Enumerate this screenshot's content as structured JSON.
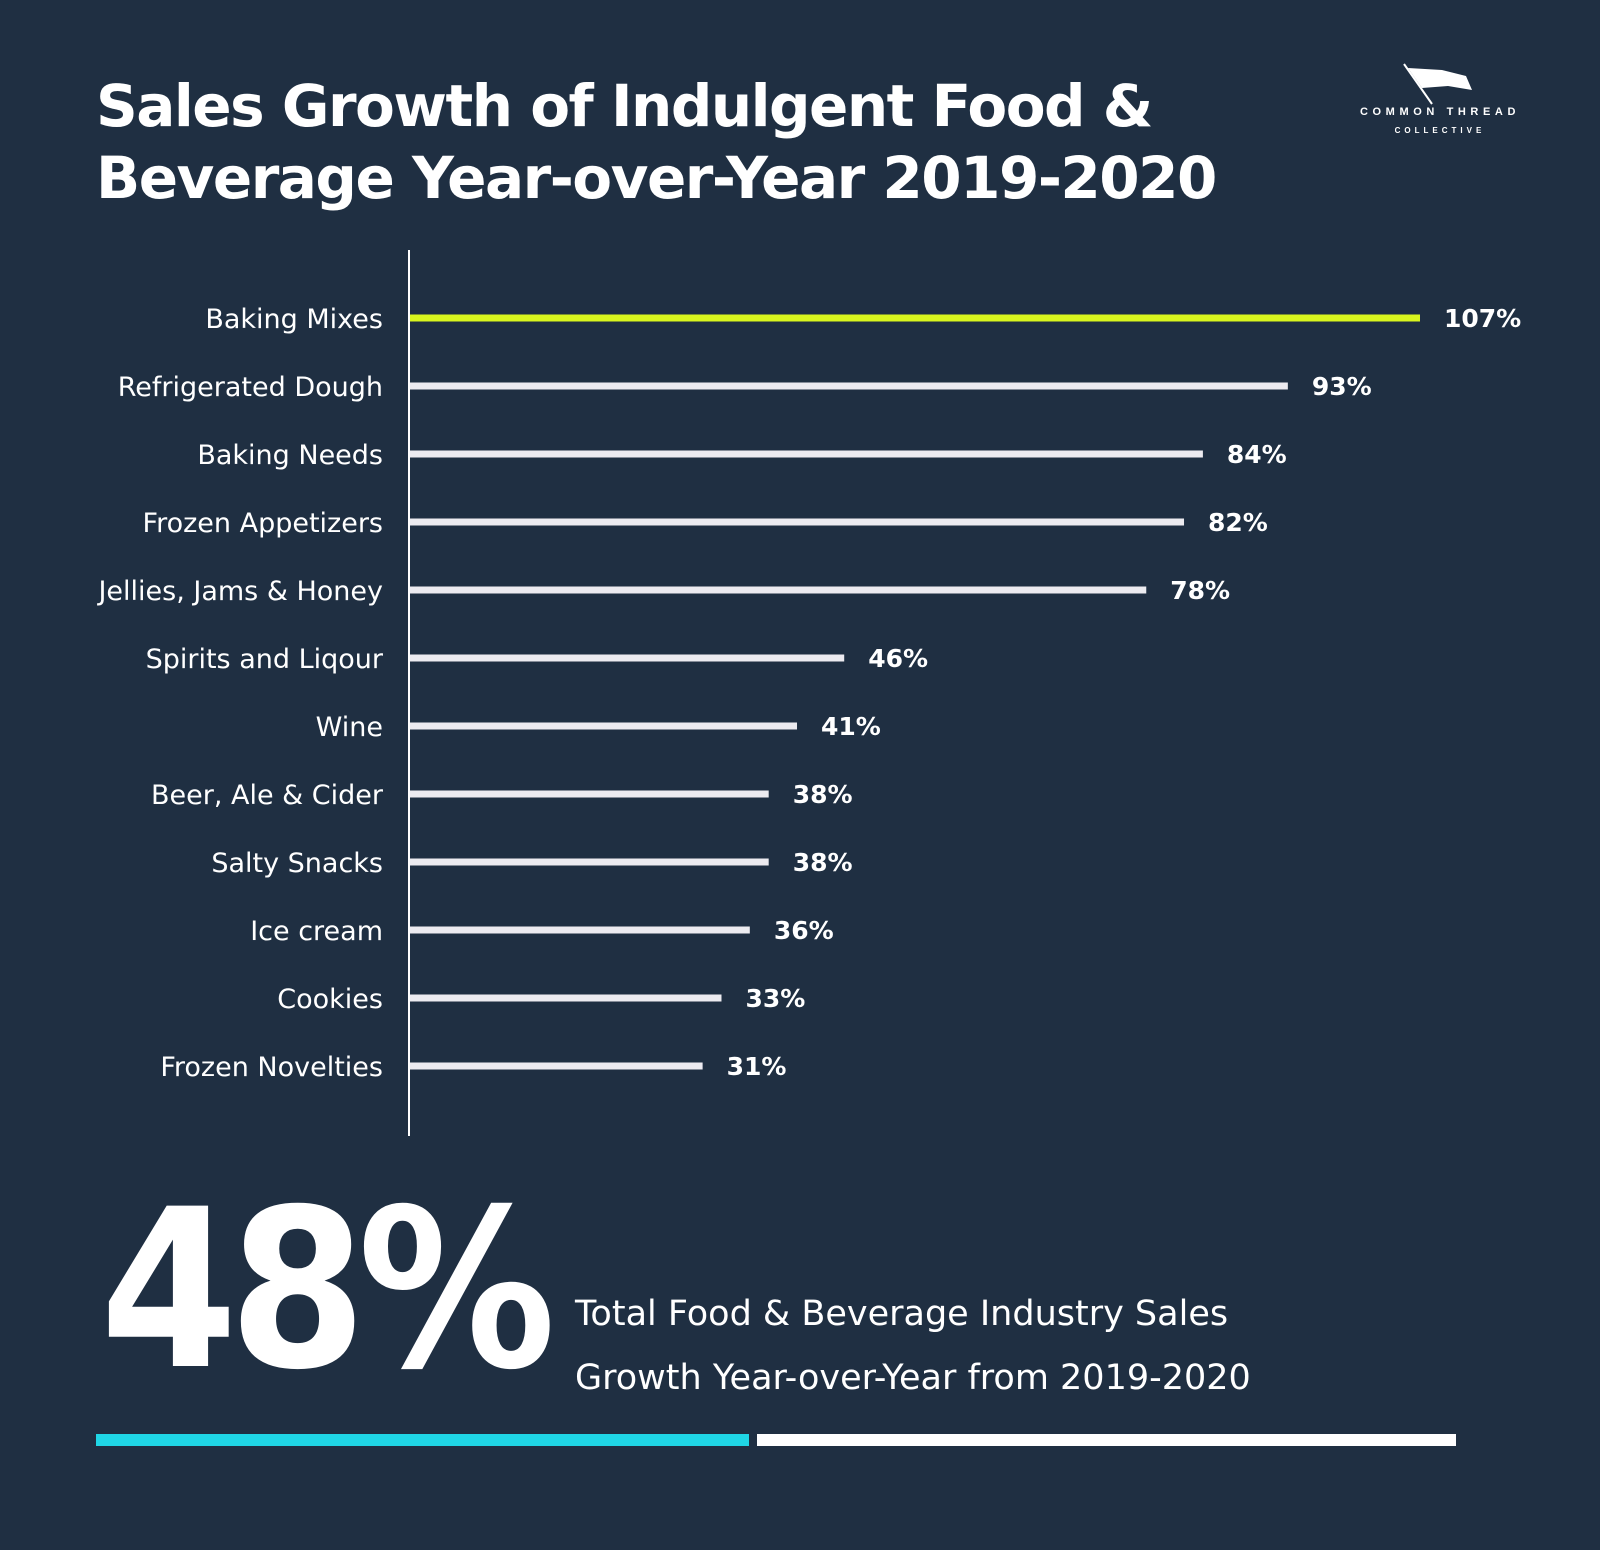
{
  "title": {
    "line1": "Sales Growth of Indulgent Food &",
    "line2": "Beverage Year-over-Year 2019-2020"
  },
  "logo": {
    "line1": "COMMON THREAD",
    "line2": "COLLECTIVE",
    "icon": "flag-icon"
  },
  "colors": {
    "background": "#1f2f42",
    "highlight_bar": "#d8f51e",
    "bar": "#ecebf0",
    "stat_fill": "#1fd6e6",
    "stat_track": "#ffffff"
  },
  "chart_data": {
    "type": "bar",
    "orientation": "horizontal",
    "categories": [
      "Baking Mixes",
      "Refrigerated Dough",
      "Baking Needs",
      "Frozen Appetizers",
      "Jellies, Jams & Honey",
      "Spirits and Liqour",
      "Wine",
      "Beer, Ale & Cider",
      "Salty Snacks",
      "Ice cream",
      "Cookies",
      "Frozen Novelties"
    ],
    "values": [
      107,
      93,
      84,
      82,
      78,
      46,
      41,
      38,
      38,
      36,
      33,
      31
    ],
    "value_labels": [
      "107%",
      "93%",
      "84%",
      "82%",
      "78%",
      "46%",
      "41%",
      "38%",
      "38%",
      "36%",
      "33%",
      "31%"
    ],
    "highlight_index": 0,
    "xlim": [
      0,
      107
    ],
    "grid": false,
    "legend": "none"
  },
  "stat": {
    "value": "48%",
    "caption_line1": "Total Food & Beverage Industry Sales",
    "caption_line2": "Growth Year-over-Year from 2019-2020",
    "fraction": 0.48
  }
}
